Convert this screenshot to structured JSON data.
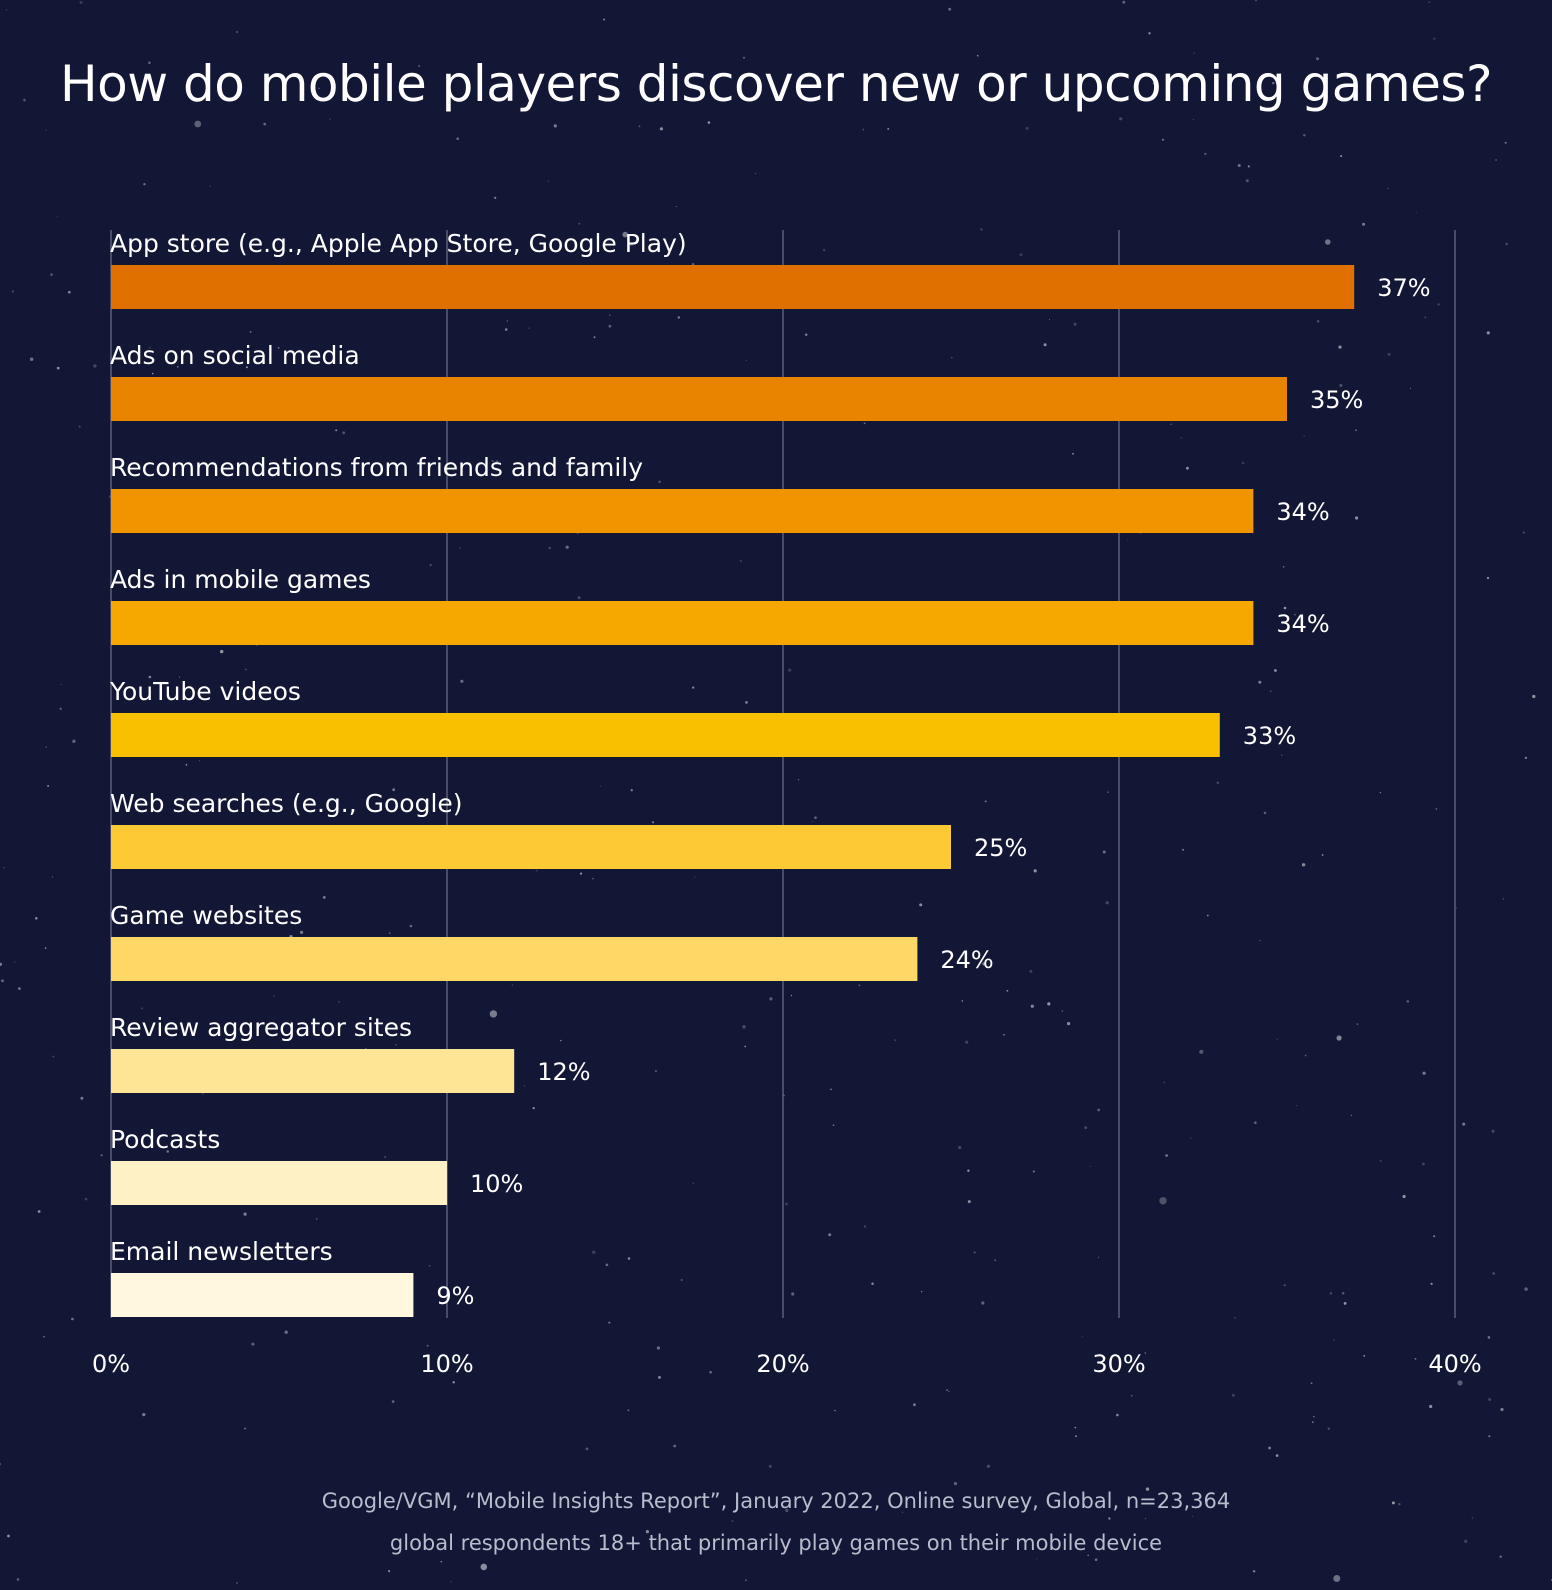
{
  "title": "How do mobile players discover new or upcoming games?",
  "source_line1": "Google/VGM, “Mobile Insights Report”, January 2022, Online survey, Global, n=23,364",
  "source_line2": "global respondents 18+ that primarily play games on their mobile device",
  "colors": {
    "background": "#121735",
    "gridline": "#5a5f78",
    "bars": [
      "#e07000",
      "#e88400",
      "#f09500",
      "#f7a800",
      "#f9c000",
      "#fdca35",
      "#fed766",
      "#fee596",
      "#fff1c6",
      "#fff8de"
    ]
  },
  "chart_data": {
    "type": "bar",
    "orientation": "horizontal",
    "title": "How do mobile players discover new or upcoming games?",
    "categories": [
      "App store (e.g., Apple App Store, Google Play)",
      "Ads on social media",
      "Recommendations from friends and family",
      "Ads in mobile games",
      "YouTube videos",
      "Web searches (e.g., Google)",
      "Game websites",
      "Review aggregator sites",
      "Podcasts",
      "Email newsletters"
    ],
    "values": [
      37,
      35,
      34,
      34,
      33,
      25,
      24,
      12,
      10,
      9
    ],
    "value_labels": [
      "37%",
      "35%",
      "34%",
      "34%",
      "33%",
      "25%",
      "24%",
      "12%",
      "10%",
      "9%"
    ],
    "x_ticks": [
      0,
      10,
      20,
      30,
      40
    ],
    "x_tick_labels": [
      "0%",
      "10%",
      "20%",
      "30%",
      "40%"
    ],
    "xlim": [
      0,
      40
    ],
    "xlabel": "",
    "ylabel": "",
    "grid": true,
    "legend": "none"
  }
}
